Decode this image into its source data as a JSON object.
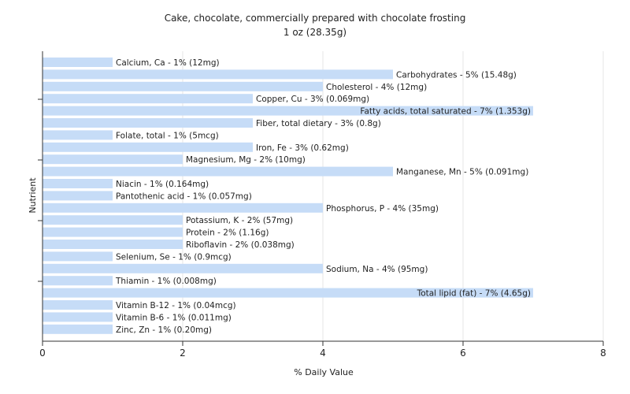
{
  "chart_data": {
    "type": "bar",
    "orientation": "horizontal",
    "title": "Cake, chocolate, commercially prepared with chocolate frosting",
    "subtitle": "1 oz (28.35g)",
    "xlabel": "% Daily Value",
    "ylabel": "Nutrient",
    "xlim": [
      0,
      8
    ],
    "xticks": [
      0,
      2,
      4,
      6,
      8
    ],
    "grid": "vertical",
    "bar_color": "#c6dcf7",
    "categories": [
      "Calcium, Ca",
      "Carbohydrates",
      "Cholesterol",
      "Copper, Cu",
      "Fatty acids, total saturated",
      "Fiber, total dietary",
      "Folate, total",
      "Iron, Fe",
      "Magnesium, Mg",
      "Manganese, Mn",
      "Niacin",
      "Pantothenic acid",
      "Phosphorus, P",
      "Potassium, K",
      "Protein",
      "Riboflavin",
      "Selenium, Se",
      "Sodium, Na",
      "Thiamin",
      "Total lipid (fat)",
      "Vitamin B-12",
      "Vitamin B-6",
      "Zinc, Zn"
    ],
    "values": [
      1,
      5,
      4,
      3,
      7,
      3,
      1,
      3,
      2,
      5,
      1,
      1,
      4,
      2,
      2,
      2,
      1,
      4,
      1,
      7,
      1,
      1,
      1
    ],
    "labels": [
      "Calcium, Ca - 1% (12mg)",
      "Carbohydrates - 5% (15.48g)",
      "Cholesterol - 4% (12mg)",
      "Copper, Cu - 3% (0.069mg)",
      "Fatty acids, total saturated - 7% (1.353g)",
      "Fiber, total dietary - 3% (0.8g)",
      "Folate, total - 1% (5mcg)",
      "Iron, Fe - 3% (0.62mg)",
      "Magnesium, Mg - 2% (10mg)",
      "Manganese, Mn - 5% (0.091mg)",
      "Niacin - 1% (0.164mg)",
      "Pantothenic acid - 1% (0.057mg)",
      "Phosphorus, P - 4% (35mg)",
      "Potassium, K - 2% (57mg)",
      "Protein - 2% (1.16g)",
      "Riboflavin - 2% (0.038mg)",
      "Selenium, Se - 1% (0.9mcg)",
      "Sodium, Na - 4% (95mg)",
      "Thiamin - 1% (0.008mg)",
      "Total lipid (fat) - 7% (4.65g)",
      "Vitamin B-12 - 1% (0.04mcg)",
      "Vitamin B-6 - 1% (0.011mg)",
      "Zinc, Zn - 1% (0.20mg)"
    ]
  }
}
